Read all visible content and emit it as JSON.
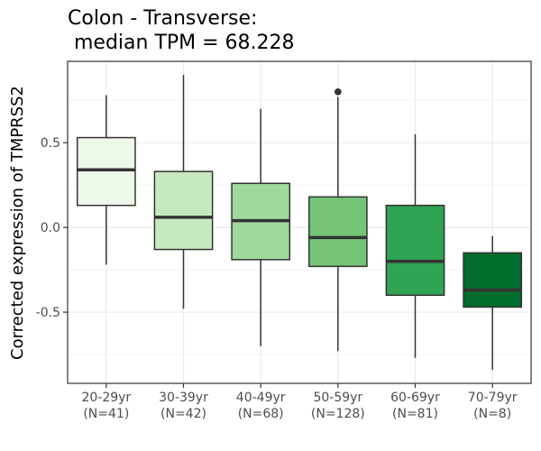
{
  "chart_data": {
    "type": "box",
    "title_line1": "Colon - Transverse:",
    "title_line2": " median TPM = 68.228",
    "xlabel": "",
    "ylabel": "Corrected expression of TMPRSS2",
    "ylim": [
      -0.92,
      0.98
    ],
    "y_ticks": [
      -0.5,
      0.0,
      0.5
    ],
    "y_tick_labels": [
      "-0.5",
      "0.0",
      "0.5"
    ],
    "grid": true,
    "categories": [
      {
        "label": "20-29yr",
        "n_label": "(N=41)"
      },
      {
        "label": "30-39yr",
        "n_label": "(N=42)"
      },
      {
        "label": "40-49yr",
        "n_label": "(N=68)"
      },
      {
        "label": "50-59yr",
        "n_label": "(N=128)"
      },
      {
        "label": "60-69yr",
        "n_label": "(N=81)"
      },
      {
        "label": "70-79yr",
        "n_label": "(N=8)"
      }
    ],
    "boxes": [
      {
        "whisker_low": -0.22,
        "q1": 0.13,
        "median": 0.34,
        "q3": 0.53,
        "whisker_high": 0.78,
        "outliers": [],
        "fill": "#edf8e9"
      },
      {
        "whisker_low": -0.48,
        "q1": -0.13,
        "median": 0.06,
        "q3": 0.33,
        "whisker_high": 0.9,
        "outliers": [],
        "fill": "#c7e9c0"
      },
      {
        "whisker_low": -0.7,
        "q1": -0.19,
        "median": 0.04,
        "q3": 0.26,
        "whisker_high": 0.7,
        "outliers": [],
        "fill": "#a1d99b"
      },
      {
        "whisker_low": -0.73,
        "q1": -0.23,
        "median": -0.06,
        "q3": 0.18,
        "whisker_high": 0.77,
        "outliers": [
          0.8
        ],
        "fill": "#74c476"
      },
      {
        "whisker_low": -0.77,
        "q1": -0.4,
        "median": -0.2,
        "q3": 0.13,
        "whisker_high": 0.55,
        "outliers": [],
        "fill": "#31a354"
      },
      {
        "whisker_low": -0.84,
        "q1": -0.47,
        "median": -0.37,
        "q3": -0.15,
        "whisker_high": -0.05,
        "outliers": [],
        "fill": "#006d2c"
      }
    ]
  }
}
